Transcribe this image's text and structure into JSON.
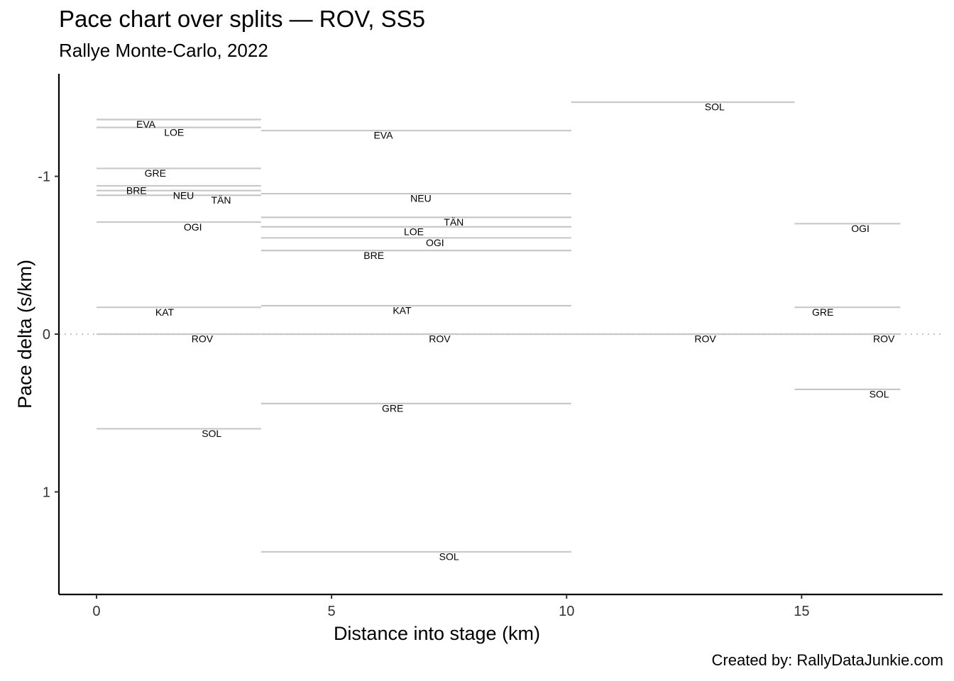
{
  "chart_data": {
    "type": "line",
    "title": "Pace chart over splits — ROV, SS5",
    "subtitle": "Rallye Monte-Carlo, 2022",
    "xlabel": "Distance into stage (km)",
    "ylabel": "Pace delta (s/km)",
    "caption": "Created by: RallyDataJunkie.com",
    "xlim": [
      -0.8,
      18.0
    ],
    "ylim": [
      1.65,
      -1.65
    ],
    "y_reversed": true,
    "xticks": [
      0,
      5,
      10,
      15
    ],
    "yticks": [
      -1,
      0,
      1
    ],
    "ytick_labels": [
      "-1",
      "0",
      "1"
    ],
    "reference_line": 0,
    "segments": [
      {
        "label": "EVA",
        "x0": 0,
        "x1": 3.5,
        "y": -1.36
      },
      {
        "label": "LOE",
        "x0": 0,
        "x1": 3.5,
        "y": -1.31
      },
      {
        "label": "GRE",
        "x0": 0,
        "x1": 3.5,
        "y": -1.05
      },
      {
        "label": "BRE",
        "x0": 0,
        "x1": 3.5,
        "y": -0.94
      },
      {
        "label": "NEU",
        "x0": 0,
        "x1": 3.5,
        "y": -0.91
      },
      {
        "label": "TÄN",
        "x0": 0,
        "x1": 3.5,
        "y": -0.88
      },
      {
        "label": "OGI",
        "x0": 0,
        "x1": 3.5,
        "y": -0.71
      },
      {
        "label": "KAT",
        "x0": 0,
        "x1": 3.5,
        "y": -0.17
      },
      {
        "label": "ROV",
        "x0": 0,
        "x1": 3.5,
        "y": 0.0
      },
      {
        "label": "SOL",
        "x0": 0,
        "x1": 3.5,
        "y": 0.6
      },
      {
        "label": "EVA",
        "x0": 3.5,
        "x1": 10.1,
        "y": -1.29
      },
      {
        "label": "NEU",
        "x0": 3.5,
        "x1": 10.1,
        "y": -0.89
      },
      {
        "label": "TÄN",
        "x0": 3.5,
        "x1": 10.1,
        "y": -0.74
      },
      {
        "label": "LOE",
        "x0": 3.5,
        "x1": 10.1,
        "y": -0.68
      },
      {
        "label": "OGI",
        "x0": 3.5,
        "x1": 10.1,
        "y": -0.61
      },
      {
        "label": "BRE",
        "x0": 3.5,
        "x1": 10.1,
        "y": -0.53
      },
      {
        "label": "KAT",
        "x0": 3.5,
        "x1": 10.1,
        "y": -0.18
      },
      {
        "label": "ROV",
        "x0": 3.5,
        "x1": 10.1,
        "y": 0.0
      },
      {
        "label": "GRE",
        "x0": 3.5,
        "x1": 10.1,
        "y": 0.44
      },
      {
        "label": "SOL",
        "x0": 3.5,
        "x1": 10.1,
        "y": 1.38
      },
      {
        "label": "SOL",
        "x0": 10.1,
        "x1": 14.85,
        "y": -1.47
      },
      {
        "label": "ROV",
        "x0": 10.1,
        "x1": 14.85,
        "y": 0.0
      },
      {
        "label": "OGI",
        "x0": 14.85,
        "x1": 17.1,
        "y": -0.7
      },
      {
        "label": "GRE",
        "x0": 14.85,
        "x1": 17.1,
        "y": -0.17
      },
      {
        "label": "ROV",
        "x0": 14.85,
        "x1": 17.1,
        "y": 0.0
      },
      {
        "label": "SOL",
        "x0": 14.85,
        "x1": 17.1,
        "y": 0.35
      }
    ],
    "label_positions": [
      {
        "x": 1.05,
        "y": -1.33
      },
      {
        "x": 1.65,
        "y": -1.28
      },
      {
        "x": 1.25,
        "y": -1.02
      },
      {
        "x": 0.85,
        "y": -0.91
      },
      {
        "x": 1.85,
        "y": -0.88
      },
      {
        "x": 2.65,
        "y": -0.85
      },
      {
        "x": 2.05,
        "y": -0.68
      },
      {
        "x": 1.45,
        "y": -0.14
      },
      {
        "x": 2.25,
        "y": 0.03
      },
      {
        "x": 2.45,
        "y": 0.63
      },
      {
        "x": 6.1,
        "y": -1.26
      },
      {
        "x": 6.9,
        "y": -0.86
      },
      {
        "x": 7.6,
        "y": -0.71
      },
      {
        "x": 6.75,
        "y": -0.65
      },
      {
        "x": 7.2,
        "y": -0.58
      },
      {
        "x": 5.9,
        "y": -0.5
      },
      {
        "x": 6.5,
        "y": -0.15
      },
      {
        "x": 7.3,
        "y": 0.03
      },
      {
        "x": 6.3,
        "y": 0.47
      },
      {
        "x": 7.5,
        "y": 1.41
      },
      {
        "x": 13.15,
        "y": -1.44
      },
      {
        "x": 12.95,
        "y": 0.03
      },
      {
        "x": 16.25,
        "y": -0.67
      },
      {
        "x": 15.45,
        "y": -0.14
      },
      {
        "x": 16.75,
        "y": 0.03
      },
      {
        "x": 16.65,
        "y": 0.38
      }
    ]
  }
}
